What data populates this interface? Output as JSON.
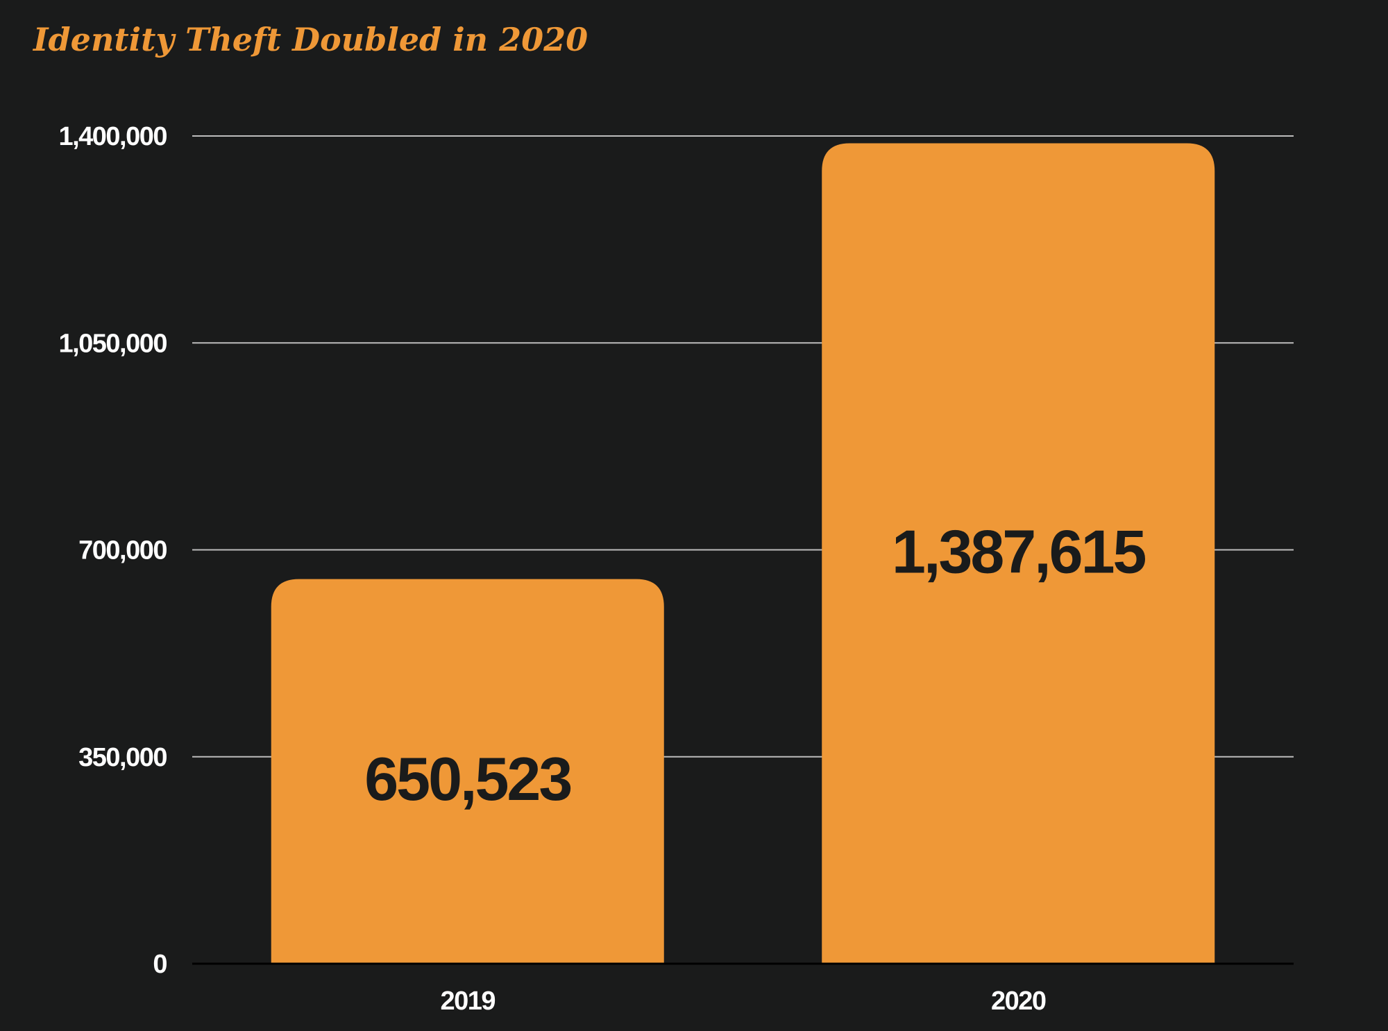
{
  "chart_data": {
    "type": "bar",
    "title": "Identity Theft Doubled in 2020",
    "xlabel": "",
    "ylabel": "",
    "categories": [
      "2019",
      "2020"
    ],
    "values": [
      650523,
      1387615
    ],
    "data_labels": [
      "650,523",
      "1,387,615"
    ],
    "ylim": [
      0,
      1400000
    ],
    "yticks": [
      0,
      350000,
      700000,
      1050000,
      1400000
    ],
    "ytick_labels": [
      "0",
      "350,000",
      "700,000",
      "1,050,000",
      "1,400,000"
    ],
    "grid": true,
    "legend": "none"
  },
  "colors": {
    "background": "#1a1b1b",
    "bar": "#ef9837",
    "title": "#ef9837",
    "gridline": "#bdbdbd",
    "axis": "#000000",
    "tick_text": "#ffffff",
    "data_label_text": "#1a1b1b"
  }
}
